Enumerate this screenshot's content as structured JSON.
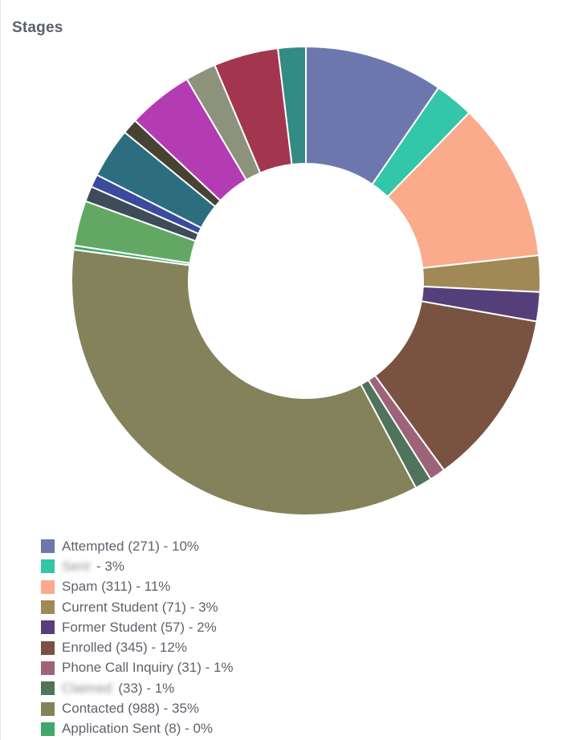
{
  "title": "Stages",
  "chart_data": {
    "type": "pie",
    "donut": true,
    "legend_position": "bottom",
    "slices": [
      {
        "label": "Attempted",
        "value": 271,
        "percent": "10%",
        "color": "#6c78ad"
      },
      {
        "label": "Sent",
        "value": 76,
        "percent": "3%",
        "color": "#33c6a8",
        "obscured": true
      },
      {
        "label": "Spam",
        "value": 311,
        "percent": "11%",
        "color": "#f9ab8c"
      },
      {
        "label": "Current Student",
        "value": 71,
        "percent": "3%",
        "color": "#a08955"
      },
      {
        "label": "Former Student",
        "value": 57,
        "percent": "2%",
        "color": "#553f7b"
      },
      {
        "label": "Enrolled",
        "value": 345,
        "percent": "12%",
        "color": "#7a5242"
      },
      {
        "label": "Phone Call Inquiry",
        "value": 31,
        "percent": "1%",
        "color": "#9c6379"
      },
      {
        "label": "Claimed",
        "value": 33,
        "percent": "1%",
        "color": "#4f735b",
        "obscured": true
      },
      {
        "label": "Contacted",
        "value": 988,
        "percent": "35%",
        "color": "#84825a"
      },
      {
        "label": "Application Sent",
        "value": 8,
        "percent": "0%",
        "color": "#3ea86a"
      },
      {
        "label": "",
        "value": 88,
        "color": "#62a864",
        "in_legend": false
      },
      {
        "label": "",
        "value": 30,
        "color": "#3e4c59",
        "in_legend": false
      },
      {
        "label": "",
        "value": 25,
        "color": "#3a4a9c",
        "in_legend": false
      },
      {
        "label": "",
        "value": 98,
        "color": "#2c6e80",
        "in_legend": false
      },
      {
        "label": "",
        "value": 30,
        "color": "#474234",
        "in_legend": false
      },
      {
        "label": "",
        "value": 128,
        "color": "#b43cb3",
        "in_legend": false
      },
      {
        "label": "",
        "value": 60,
        "color": "#8d937a",
        "in_legend": false
      },
      {
        "label": "",
        "value": 126,
        "color": "#a3364f",
        "in_legend": false
      },
      {
        "label": "",
        "value": 54,
        "color": "#348a85",
        "in_legend": false
      }
    ]
  }
}
